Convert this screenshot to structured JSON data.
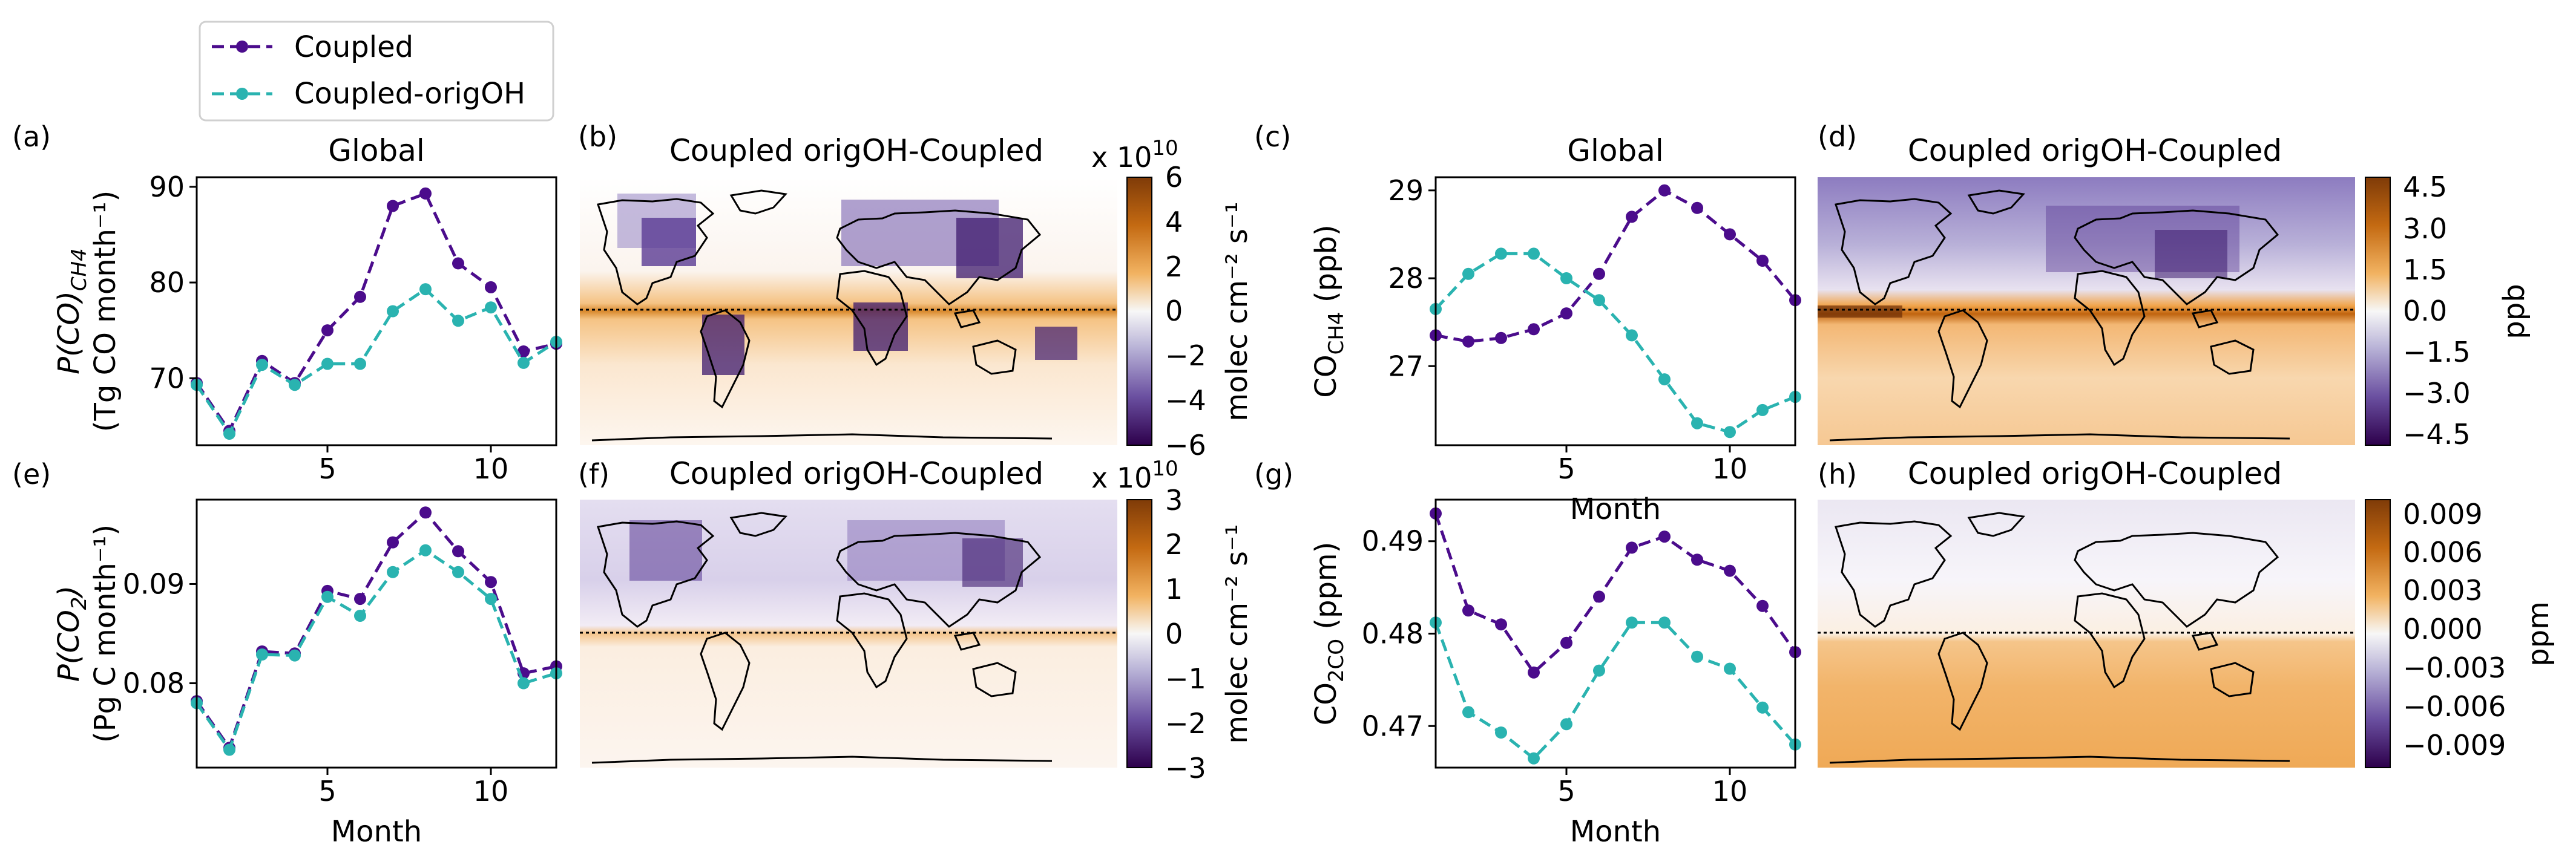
{
  "legend": {
    "items": [
      {
        "label": "Coupled",
        "color": "#4b0c8c"
      },
      {
        "label": "Coupled-origOH",
        "color": "#2ab3b0"
      }
    ]
  },
  "colors": {
    "coupled": "#4b0c8c",
    "orig": "#2ab3b0",
    "map_neg": "#2d0a4e",
    "map_pos": "#8a4a0c"
  },
  "chart_data": [
    {
      "panel": "(a)",
      "type": "line",
      "title": "Global",
      "xlabel": "",
      "ylabel_main": "P(CO)",
      "ylabel_sub": "CH4",
      "ylabel_units": "(Tg CO month⁻¹)",
      "xlim": [
        1,
        12
      ],
      "ylim": [
        63,
        91
      ],
      "xticks": [
        5,
        10
      ],
      "yticks": [
        70,
        80,
        90
      ],
      "x": [
        1,
        2,
        3,
        4,
        5,
        6,
        7,
        8,
        9,
        10,
        11,
        12
      ],
      "series": [
        {
          "name": "Coupled",
          "values": [
            69.5,
            64.5,
            71.8,
            69.5,
            75,
            78.5,
            88,
            89.3,
            82,
            79.5,
            72.8,
            73.6
          ]
        },
        {
          "name": "Coupled-origOH",
          "values": [
            69.3,
            64.2,
            71.4,
            69.3,
            71.5,
            71.5,
            77,
            79.3,
            76,
            77.4,
            71.6,
            73.8
          ]
        }
      ]
    },
    {
      "panel": "(c)",
      "type": "line",
      "title": "Global",
      "xlabel": "Month",
      "ylabel_main": "CO",
      "ylabel_sub": "CH4",
      "ylabel_units": "(ppb)",
      "xlim": [
        1,
        12
      ],
      "ylim": [
        26.1,
        29.15
      ],
      "xticks": [
        5,
        10
      ],
      "yticks": [
        27,
        28,
        29
      ],
      "x": [
        1,
        2,
        3,
        4,
        5,
        6,
        7,
        8,
        9,
        10,
        11,
        12
      ],
      "series": [
        {
          "name": "Coupled",
          "values": [
            27.35,
            27.28,
            27.32,
            27.42,
            27.6,
            28.05,
            28.7,
            29.0,
            28.8,
            28.5,
            28.2,
            27.75
          ]
        },
        {
          "name": "Coupled-origOH",
          "values": [
            27.65,
            28.05,
            28.28,
            28.28,
            28.0,
            27.75,
            27.35,
            26.85,
            26.35,
            26.25,
            26.5,
            26.65
          ]
        }
      ]
    },
    {
      "panel": "(e)",
      "type": "line",
      "title": "",
      "xlabel": "Month",
      "ylabel_main": "P(CO",
      "ylabel_sub": "2",
      "ylabel_close": ")",
      "ylabel_units": "(Pg C month⁻¹)",
      "xlim": [
        1,
        12
      ],
      "ylim": [
        0.0715,
        0.0985
      ],
      "xticks": [
        5,
        10
      ],
      "yticks": [
        0.08,
        0.09
      ],
      "x": [
        1,
        2,
        3,
        4,
        5,
        6,
        7,
        8,
        9,
        10,
        11,
        12
      ],
      "series": [
        {
          "name": "Coupled",
          "values": [
            0.0782,
            0.0735,
            0.0832,
            0.083,
            0.0893,
            0.0885,
            0.0942,
            0.0972,
            0.0933,
            0.0902,
            0.081,
            0.0817
          ]
        },
        {
          "name": "Coupled-origOH",
          "values": [
            0.078,
            0.0733,
            0.0829,
            0.0828,
            0.0887,
            0.0868,
            0.0912,
            0.0934,
            0.0912,
            0.0885,
            0.08,
            0.081
          ]
        }
      ]
    },
    {
      "panel": "(g)",
      "type": "line",
      "title": "",
      "xlabel": "Month",
      "ylabel_main": "CO",
      "ylabel_sub": "2CO",
      "ylabel_units": "(ppm)",
      "xlim": [
        1,
        12
      ],
      "ylim": [
        0.4655,
        0.4945
      ],
      "xticks": [
        5,
        10
      ],
      "yticks": [
        0.47,
        0.48,
        0.49
      ],
      "x": [
        1,
        2,
        3,
        4,
        5,
        6,
        7,
        8,
        9,
        10,
        11,
        12
      ],
      "series": [
        {
          "name": "Coupled",
          "values": [
            0.493,
            0.4825,
            0.481,
            0.4758,
            0.479,
            0.484,
            0.4893,
            0.4905,
            0.488,
            0.4868,
            0.483,
            0.478
          ]
        },
        {
          "name": "Coupled-origOH",
          "values": [
            0.4812,
            0.4715,
            0.4693,
            0.4665,
            0.4702,
            0.476,
            0.4812,
            0.4812,
            0.4775,
            0.4762,
            0.472,
            0.468
          ]
        }
      ]
    },
    {
      "panel": "(b)",
      "type": "heatmap",
      "title": "Coupled origOH-Coupled",
      "colorbar": {
        "label": "molec cm⁻² s⁻¹",
        "ticks": [
          "6",
          "4",
          "2",
          "0",
          "−2",
          "−4",
          "−6"
        ],
        "multiplier": "x 10",
        "exponent": "10"
      }
    },
    {
      "panel": "(d)",
      "type": "heatmap",
      "title": "Coupled origOH-Coupled",
      "colorbar": {
        "label": "ppb",
        "ticks": [
          "4.5",
          "3.0",
          "1.5",
          "0.0",
          "−1.5",
          "−3.0",
          "−4.5"
        ]
      }
    },
    {
      "panel": "(f)",
      "type": "heatmap",
      "title": "Coupled origOH-Coupled",
      "colorbar": {
        "label": "molec cm⁻² s⁻¹",
        "ticks": [
          "3",
          "2",
          "1",
          "0",
          "−1",
          "−2",
          "−3"
        ],
        "multiplier": "x 10",
        "exponent": "10"
      }
    },
    {
      "panel": "(h)",
      "type": "heatmap",
      "title": "Coupled origOH-Coupled",
      "colorbar": {
        "label": "ppm",
        "ticks": [
          "0.009",
          "0.006",
          "0.003",
          "0.000",
          "−0.003",
          "−0.006",
          "−0.009"
        ]
      }
    }
  ]
}
